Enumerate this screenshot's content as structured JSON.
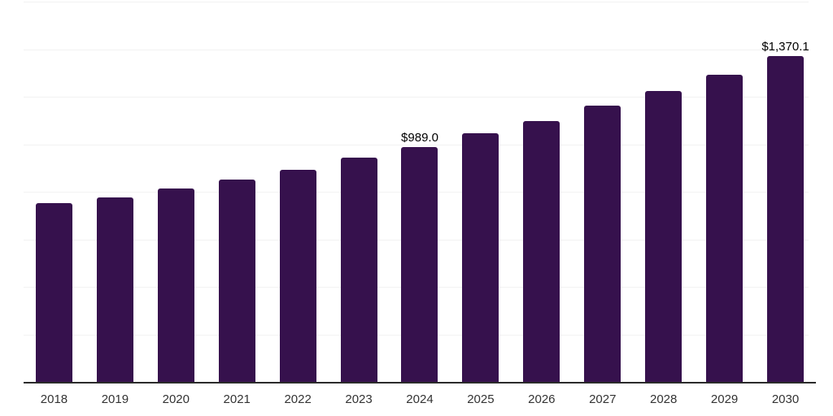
{
  "chart_data": {
    "type": "bar",
    "title": "",
    "xlabel": "",
    "ylabel": "",
    "categories": [
      "2018",
      "2019",
      "2020",
      "2021",
      "2022",
      "2023",
      "2024",
      "2025",
      "2026",
      "2027",
      "2028",
      "2029",
      "2030"
    ],
    "values": [
      751.7,
      775.6,
      813.1,
      852.3,
      893.2,
      944.3,
      989.0,
      1046.6,
      1097.7,
      1160.8,
      1225.5,
      1293.7,
      1370.1
    ],
    "data_labels": {
      "2024": "$989.0",
      "2030": "$1,370.1"
    },
    "ylim": [
      0,
      1600
    ],
    "gridline_step": 200,
    "grid": "horizontal-only",
    "legend": "none",
    "y_axis_tick_labels_visible": false,
    "colors": {
      "bar": "#36114D",
      "gridline": "#f2f2f2",
      "axis_line": "#2b2b2b",
      "data_label_text": "#000000",
      "tick_label_text": "#333333",
      "background": "#ffffff"
    }
  }
}
